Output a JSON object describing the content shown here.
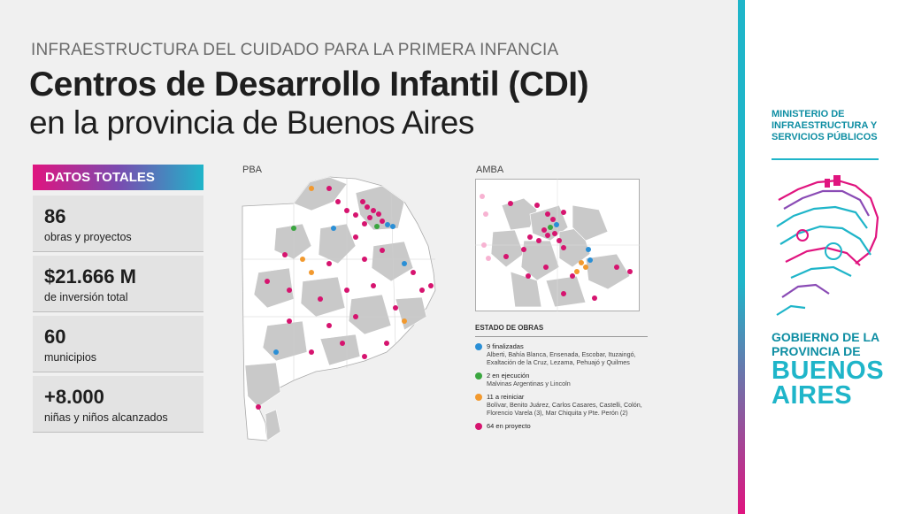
{
  "header": {
    "kicker": "INFRAESTRUCTURA DEL CUIDADO PARA LA PRIMERA INFANCIA",
    "title": "Centros de Desarrollo Infantil (CDI)",
    "subtitle": "en la provincia de Buenos Aires"
  },
  "totals": {
    "badge": "DATOS TOTALES",
    "items": [
      {
        "value": "86",
        "label": "obras y proyectos"
      },
      {
        "value": "$21.666 M",
        "label": "de inversión total"
      },
      {
        "value": "60",
        "label": "municipios"
      },
      {
        "value": "+8.000",
        "label": "niñas y niños alcanzados"
      }
    ]
  },
  "maps": {
    "pba_label": "PBA",
    "amba_label": "AMBA"
  },
  "legend": {
    "title": "ESTADO DE OBRAS",
    "items": [
      {
        "title": "9 finalizadas",
        "desc": "Alberti, Bahía Blanca, Ensenada, Escobar, Ituzaingó, Exaltación de la Cruz, Lezama, Pehuajó y Quilmes",
        "color": "#2a8fd6"
      },
      {
        "title": "2 en ejecución",
        "desc": "Malvinas Argentinas y Lincoln",
        "color": "#3aa63f"
      },
      {
        "title": "11 a reiniciar",
        "desc": "Bolívar, Benito Juárez, Carlos Casares, Castelli, Colón, Florencio Varela (3), Mar Chiquita y Pte. Perón (2)",
        "color": "#f2992e"
      },
      {
        "title": "64 en proyecto",
        "desc": "",
        "color": "#d6146f"
      }
    ]
  },
  "branding": {
    "ministry": "MINISTERIO DE INFRAESTRUCTURA Y SERVICIOS PÚBLICOS",
    "gobierno_line1": "GOBIERNO DE LA",
    "gobierno_line2": "PROVINCIA DE",
    "buenos": "BUENOS",
    "aires": "AIRES",
    "colors": {
      "teal": "#1fb5c9",
      "magenta": "#e0147f",
      "dark_teal": "#0e8ea3"
    }
  }
}
